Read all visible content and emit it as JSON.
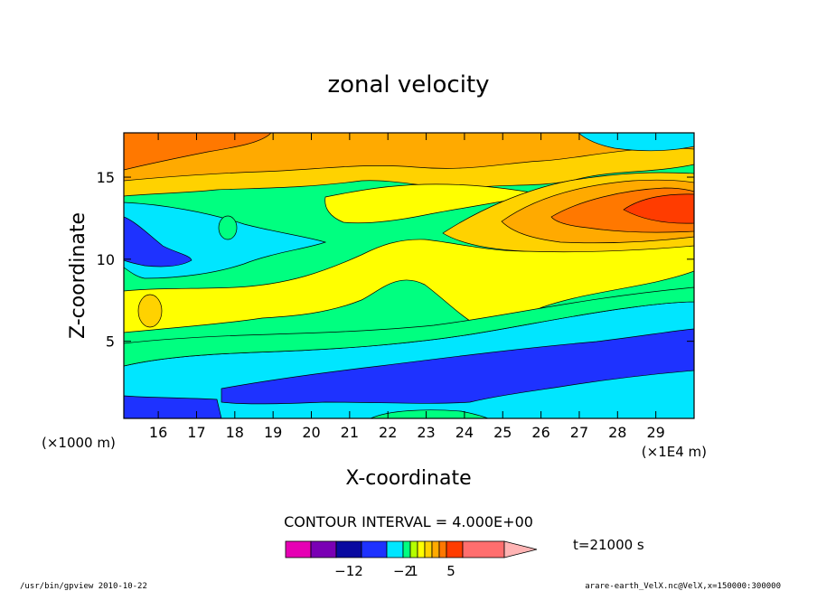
{
  "chart_data": {
    "type": "heatmap",
    "title": "zonal velocity",
    "xlabel": "X-coordinate",
    "ylabel": "Z-coordinate",
    "x_unit_note": "(×1E4 m)",
    "y_unit_note": "(×1000 m)",
    "xlim": [
      15.1,
      30.0
    ],
    "ylim": [
      0.3,
      17.7
    ],
    "x_ticks": [
      16,
      17,
      18,
      19,
      20,
      21,
      22,
      23,
      24,
      25,
      26,
      27,
      28,
      29
    ],
    "y_ticks": [
      5,
      10,
      15
    ],
    "contour_interval_text": "CONTOUR INTERVAL = 4.000E+00",
    "time_label": "t=21000 s",
    "colorbar_labels": [
      "−12",
      "−2",
      "1",
      "5"
    ],
    "colorbar_colors": [
      "#e600b4",
      "#7a00b4",
      "#0a0aa0",
      "#1e32ff",
      "#00e6ff",
      "#00ff80",
      "#b4ff00",
      "#ffff00",
      "#ffd200",
      "#ffaa00",
      "#ff7800",
      "#ff3c00",
      "#ff6e6e",
      "#ffb4b4"
    ],
    "regions": [
      {
        "name": "top-band",
        "level": 3,
        "color": "#ffaa00"
      },
      {
        "name": "top-left-core",
        "level": 4,
        "color": "#ff7800"
      },
      {
        "name": "upper-green",
        "level": 0,
        "color": "#00ff80"
      },
      {
        "name": "mid-yellow",
        "level": 1,
        "color": "#ffff00"
      },
      {
        "name": "left-cyan",
        "level": -1,
        "color": "#00e6ff"
      },
      {
        "name": "left-blue",
        "level": -2,
        "color": "#1e32ff"
      },
      {
        "name": "right-jet",
        "level": 5,
        "color": "#ff3c00"
      },
      {
        "name": "lower-cyan",
        "level": -1,
        "color": "#00e6ff"
      },
      {
        "name": "bottom-blue",
        "level": -2,
        "color": "#1e32ff"
      }
    ]
  },
  "footer": {
    "left": "/usr/bin/gpview   2010-10-22",
    "right": "arare-earth_VelX.nc@VelX,x=150000:300000"
  }
}
